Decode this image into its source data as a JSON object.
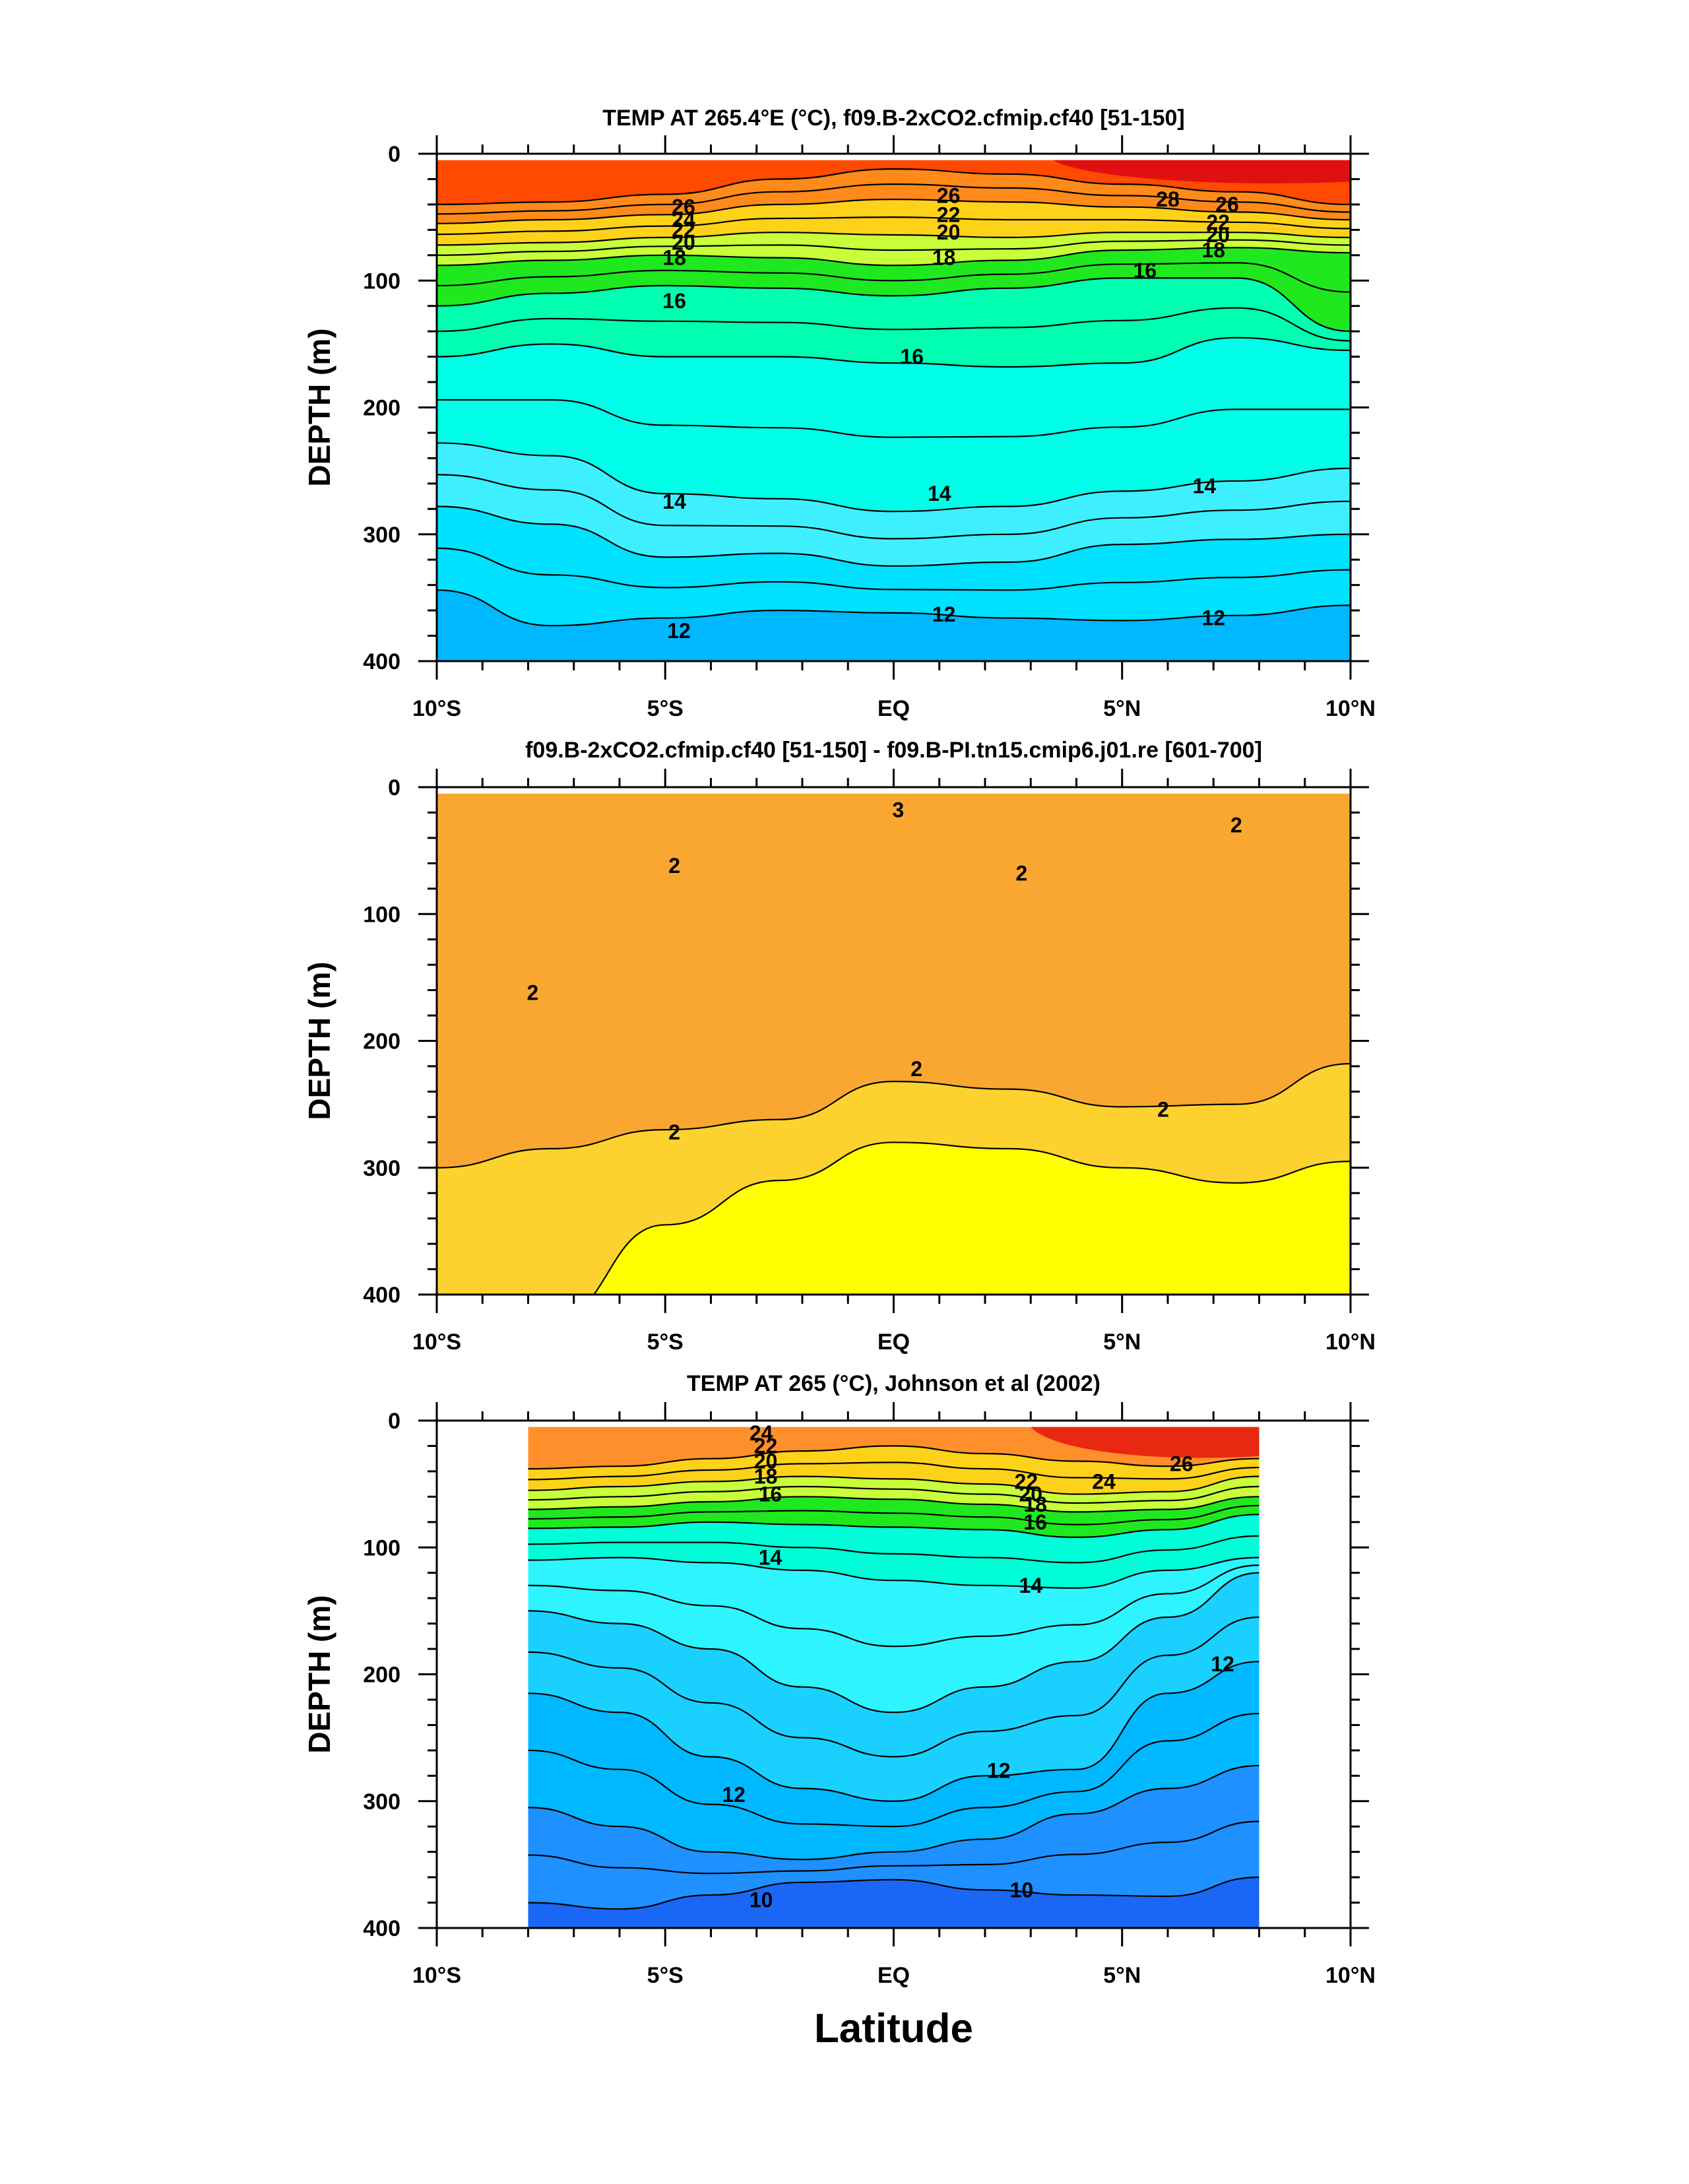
{
  "figure": {
    "xlabel": "Latitude"
  },
  "chart_data": [
    {
      "type": "contour",
      "title": "TEMP AT 265.4°E (°C), f09.B-2xCO2.cfmip.cf40 [51-150]",
      "ylabel": "DEPTH (m)",
      "xlabel": "",
      "xlim": [
        -10,
        10
      ],
      "ylim": [
        400,
        0
      ],
      "x_ticks": [
        -10,
        -5,
        0,
        5,
        10
      ],
      "x_tick_labels": [
        "10°S",
        "5°S",
        "EQ",
        "5°N",
        "10°N"
      ],
      "y_ticks": [
        0,
        100,
        200,
        300,
        400
      ],
      "y_tick_labels": [
        "0",
        "100",
        "200",
        "300",
        "400"
      ],
      "data_extent": {
        "x": [
          -10,
          10
        ],
        "y": [
          5,
          400
        ]
      },
      "contour_interval": 1,
      "bands": [
        {
          "depths": [
            5,
            5,
            5,
            5,
            5,
            5,
            5,
            5,
            5
          ],
          "color": "#ff4a00"
        },
        {
          "depths": [
            40,
            38,
            32,
            20,
            12,
            16,
            24,
            30,
            40
          ],
          "color": "#ff8a1a"
        },
        {
          "depths": [
            55,
            52,
            48,
            40,
            36,
            38,
            42,
            46,
            52
          ],
          "color": "#ffd21a"
        },
        {
          "depths": [
            72,
            70,
            66,
            62,
            64,
            66,
            62,
            62,
            66
          ],
          "color": "#c8ff3a"
        },
        {
          "depths": [
            88,
            84,
            80,
            82,
            88,
            84,
            76,
            74,
            78
          ],
          "color": "#1fe81f"
        },
        {
          "depths": [
            120,
            110,
            104,
            106,
            112,
            106,
            98,
            98,
            140
          ],
          "color": "#00ffb0"
        },
        {
          "depths": [
            160,
            150,
            160,
            160,
            165,
            168,
            165,
            145,
            155
          ],
          "color": "#00ffe8"
        },
        {
          "depths": [
            228,
            238,
            268,
            272,
            282,
            278,
            266,
            258,
            248
          ],
          "color": "#3ef0ff"
        },
        {
          "depths": [
            278,
            292,
            318,
            315,
            325,
            322,
            308,
            304,
            300
          ],
          "color": "#00e0ff"
        },
        {
          "depths": [
            344,
            372,
            366,
            360,
            362,
            366,
            368,
            364,
            356
          ],
          "color": "#00b8ff"
        }
      ],
      "top_band_extra": {
        "x": [
          3.5,
          10
        ],
        "color": "#e01010"
      },
      "contour_labels": [
        {
          "x": -4.6,
          "y": 42,
          "text": "26"
        },
        {
          "x": -4.6,
          "y": 52,
          "text": "24"
        },
        {
          "x": -4.6,
          "y": 60,
          "text": "22"
        },
        {
          "x": -4.6,
          "y": 70,
          "text": "20"
        },
        {
          "x": -4.8,
          "y": 82,
          "text": "18"
        },
        {
          "x": -4.8,
          "y": 116,
          "text": "16"
        },
        {
          "x": 1.2,
          "y": 33,
          "text": "26"
        },
        {
          "x": 1.2,
          "y": 48,
          "text": "22"
        },
        {
          "x": 1.2,
          "y": 62,
          "text": "20"
        },
        {
          "x": 1.1,
          "y": 82,
          "text": "18"
        },
        {
          "x": 0.4,
          "y": 160,
          "text": "16"
        },
        {
          "x": 6.0,
          "y": 36,
          "text": "28"
        },
        {
          "x": 7.3,
          "y": 40,
          "text": "26"
        },
        {
          "x": 7.1,
          "y": 54,
          "text": "22"
        },
        {
          "x": 7.1,
          "y": 64,
          "text": "20"
        },
        {
          "x": 7.0,
          "y": 76,
          "text": "18"
        },
        {
          "x": 5.5,
          "y": 92,
          "text": "16"
        },
        {
          "x": -4.8,
          "y": 274,
          "text": "14"
        },
        {
          "x": 1.0,
          "y": 268,
          "text": "14"
        },
        {
          "x": 6.8,
          "y": 262,
          "text": "14"
        },
        {
          "x": -4.7,
          "y": 376,
          "text": "12"
        },
        {
          "x": 1.1,
          "y": 363,
          "text": "12"
        },
        {
          "x": 7.0,
          "y": 366,
          "text": "12"
        }
      ]
    },
    {
      "type": "contour",
      "title": "f09.B-2xCO2.cfmip.cf40 [51-150] - f09.B-PI.tn15.cmip6.j01.re [601-700]",
      "ylabel": "DEPTH (m)",
      "xlabel": "",
      "xlim": [
        -10,
        10
      ],
      "ylim": [
        400,
        0
      ],
      "x_ticks": [
        -10,
        -5,
        0,
        5,
        10
      ],
      "x_tick_labels": [
        "10°S",
        "5°S",
        "EQ",
        "5°N",
        "10°N"
      ],
      "y_ticks": [
        0,
        100,
        200,
        300,
        400
      ],
      "y_tick_labels": [
        "0",
        "100",
        "200",
        "300",
        "400"
      ],
      "data_extent": {
        "x": [
          -10,
          10
        ],
        "y": [
          5,
          400
        ]
      },
      "bands": [
        {
          "depths": [
            5,
            5,
            5,
            5,
            5,
            5,
            5,
            5,
            5
          ],
          "color": "#faa732"
        },
        {
          "depths": [
            300,
            285,
            270,
            262,
            232,
            238,
            252,
            250,
            218
          ],
          "color": "#fdd22e"
        },
        {
          "depths": [
            420,
            420,
            345,
            310,
            280,
            285,
            300,
            312,
            295
          ],
          "color": "#ffff00"
        }
      ],
      "contour_labels": [
        {
          "x": 0.1,
          "y": 18,
          "text": "3"
        },
        {
          "x": 7.5,
          "y": 30,
          "text": "2"
        },
        {
          "x": -4.8,
          "y": 62,
          "text": "2"
        },
        {
          "x": 2.8,
          "y": 68,
          "text": "2"
        },
        {
          "x": -7.9,
          "y": 162,
          "text": "2"
        },
        {
          "x": 0.5,
          "y": 222,
          "text": "2"
        },
        {
          "x": 5.9,
          "y": 254,
          "text": "2"
        },
        {
          "x": -4.8,
          "y": 272,
          "text": "2"
        }
      ]
    },
    {
      "type": "contour",
      "title": "TEMP AT 265 (°C), Johnson et al (2002)",
      "ylabel": "DEPTH (m)",
      "xlabel": "Latitude",
      "xlim": [
        -10,
        10
      ],
      "ylim": [
        400,
        0
      ],
      "x_ticks": [
        -10,
        -5,
        0,
        5,
        10
      ],
      "x_tick_labels": [
        "10°S",
        "5°S",
        "EQ",
        "5°N",
        "10°N"
      ],
      "y_ticks": [
        0,
        100,
        200,
        300,
        400
      ],
      "y_tick_labels": [
        "0",
        "100",
        "200",
        "300",
        "400"
      ],
      "data_extent": {
        "x": [
          -8,
          8
        ],
        "y": [
          5,
          400
        ]
      },
      "bands": [
        {
          "depths": [
            5,
            5,
            5,
            5,
            5,
            5,
            5,
            5,
            5
          ],
          "color": "#ff8f2a"
        },
        {
          "depths": [
            38,
            36,
            30,
            24,
            20,
            26,
            32,
            36,
            30
          ],
          "color": "#ffd21a"
        },
        {
          "depths": [
            55,
            52,
            48,
            44,
            46,
            50,
            58,
            56,
            44
          ],
          "color": "#c8ff3a"
        },
        {
          "depths": [
            70,
            68,
            64,
            60,
            62,
            66,
            72,
            70,
            60
          ],
          "color": "#1fe81f"
        },
        {
          "depths": [
            85,
            84,
            80,
            82,
            84,
            86,
            92,
            86,
            74
          ],
          "color": "#00ffd8"
        },
        {
          "depths": [
            110,
            108,
            112,
            118,
            126,
            130,
            132,
            118,
            108
          ],
          "color": "#2ef4ff"
        },
        {
          "depths": [
            150,
            160,
            180,
            210,
            230,
            210,
            190,
            155,
            120
          ],
          "color": "#1ad0ff"
        },
        {
          "depths": [
            215,
            230,
            265,
            290,
            300,
            280,
            275,
            215,
            190
          ],
          "color": "#00b8ff"
        },
        {
          "depths": [
            305,
            320,
            340,
            346,
            340,
            330,
            310,
            290,
            272
          ],
          "color": "#1e90ff"
        },
        {
          "depths": [
            380,
            385,
            374,
            364,
            362,
            370,
            374,
            375,
            360
          ],
          "color": "#1a66f5"
        }
      ],
      "top_band_extra": {
        "x": [
          3,
          8
        ],
        "color": "#e82810"
      },
      "contour_labels": [
        {
          "x": -2.9,
          "y": 10,
          "text": "24"
        },
        {
          "x": -2.8,
          "y": 20,
          "text": "22"
        },
        {
          "x": -2.8,
          "y": 32,
          "text": "20"
        },
        {
          "x": -2.8,
          "y": 44,
          "text": "18"
        },
        {
          "x": -2.7,
          "y": 58,
          "text": "16"
        },
        {
          "x": -2.7,
          "y": 108,
          "text": "14"
        },
        {
          "x": 3.0,
          "y": 130,
          "text": "14"
        },
        {
          "x": 2.9,
          "y": 48,
          "text": "22"
        },
        {
          "x": 4.6,
          "y": 48,
          "text": "24"
        },
        {
          "x": 6.3,
          "y": 34,
          "text": "26"
        },
        {
          "x": 3.0,
          "y": 58,
          "text": "20"
        },
        {
          "x": 3.1,
          "y": 66,
          "text": "18"
        },
        {
          "x": 3.1,
          "y": 80,
          "text": "16"
        },
        {
          "x": 7.2,
          "y": 192,
          "text": "12"
        },
        {
          "x": 2.3,
          "y": 276,
          "text": "12"
        },
        {
          "x": -3.5,
          "y": 295,
          "text": "12"
        },
        {
          "x": -2.9,
          "y": 378,
          "text": "10"
        },
        {
          "x": 2.8,
          "y": 370,
          "text": "10"
        }
      ]
    }
  ]
}
